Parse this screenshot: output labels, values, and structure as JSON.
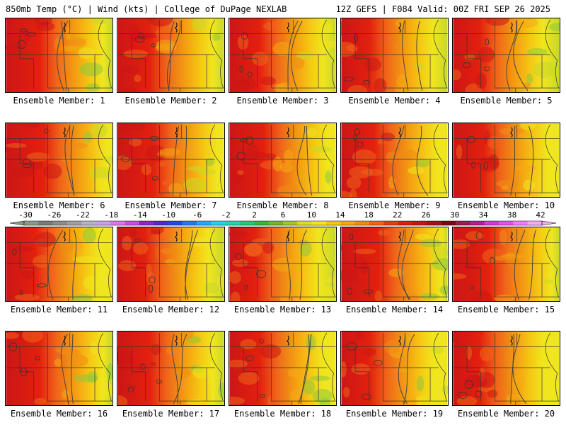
{
  "header": {
    "left": "850mb Temp (°C) | Wind (kts) | College of DuPage NEXLAB",
    "right": "12Z GEFS | F084 Valid: 00Z FRI SEP 26 2025"
  },
  "panel_label_prefix": "Ensemble Member: ",
  "members": [
    {
      "n": "1",
      "label": "Ensemble Member: 1"
    },
    {
      "n": "2",
      "label": "Ensemble Member: 2"
    },
    {
      "n": "3",
      "label": "Ensemble Member: 3"
    },
    {
      "n": "4",
      "label": "Ensemble Member: 4"
    },
    {
      "n": "5",
      "label": "Ensemble Member: 5"
    },
    {
      "n": "6",
      "label": "Ensemble Member: 6"
    },
    {
      "n": "7",
      "label": "Ensemble Member: 7"
    },
    {
      "n": "8",
      "label": "Ensemble Member: 8"
    },
    {
      "n": "9",
      "label": "Ensemble Member: 9"
    },
    {
      "n": "10",
      "label": "Ensemble Member: 10"
    },
    {
      "n": "11",
      "label": "Ensemble Member: 11"
    },
    {
      "n": "12",
      "label": "Ensemble Member: 12"
    },
    {
      "n": "13",
      "label": "Ensemble Member: 13"
    },
    {
      "n": "14",
      "label": "Ensemble Member: 14"
    },
    {
      "n": "15",
      "label": "Ensemble Member: 15"
    },
    {
      "n": "16",
      "label": "Ensemble Member: 16"
    },
    {
      "n": "17",
      "label": "Ensemble Member: 17"
    },
    {
      "n": "18",
      "label": "Ensemble Member: 18"
    },
    {
      "n": "19",
      "label": "Ensemble Member: 19"
    },
    {
      "n": "20",
      "label": "Ensemble Member: 20"
    }
  ],
  "colorbar": {
    "ticks": [
      "-30",
      "-26",
      "-22",
      "-18",
      "-14",
      "-10",
      "-6",
      "-2",
      "2",
      "6",
      "10",
      "14",
      "18",
      "22",
      "26",
      "30",
      "34",
      "38",
      "42"
    ],
    "colors": [
      "#8a9a8a",
      "#7a7a7a",
      "#8c8c8c",
      "#a0a0a0",
      "#b4b4c8",
      "#c8a0e6",
      "#d878e6",
      "#c850dc",
      "#8c28c8",
      "#5a28c8",
      "#2846e6",
      "#2878e6",
      "#28aaf0",
      "#28d2e6",
      "#28d2b4",
      "#28c878",
      "#3cb43c",
      "#78b428",
      "#a0c828",
      "#dcdc28",
      "#f0e61e",
      "#f0c814",
      "#f0aa14",
      "#f08c14",
      "#f06414",
      "#e63c14",
      "#dc1e14",
      "#c81414",
      "#a01414",
      "#7a0a0a",
      "#961e50",
      "#b41e96",
      "#d23cc8",
      "#e650e6",
      "#f07ef0",
      "#f5aaf5"
    ]
  },
  "map_palette": {
    "red": "#e2200e",
    "deep_red": "#cc1616",
    "orange": "#f0641a",
    "light_orange": "#f08c14",
    "amber": "#f5aa12",
    "yellow_orange": "#f5c814",
    "yellow": "#f0e61e",
    "lime": "#c8d828",
    "green": "#8cc83c"
  }
}
